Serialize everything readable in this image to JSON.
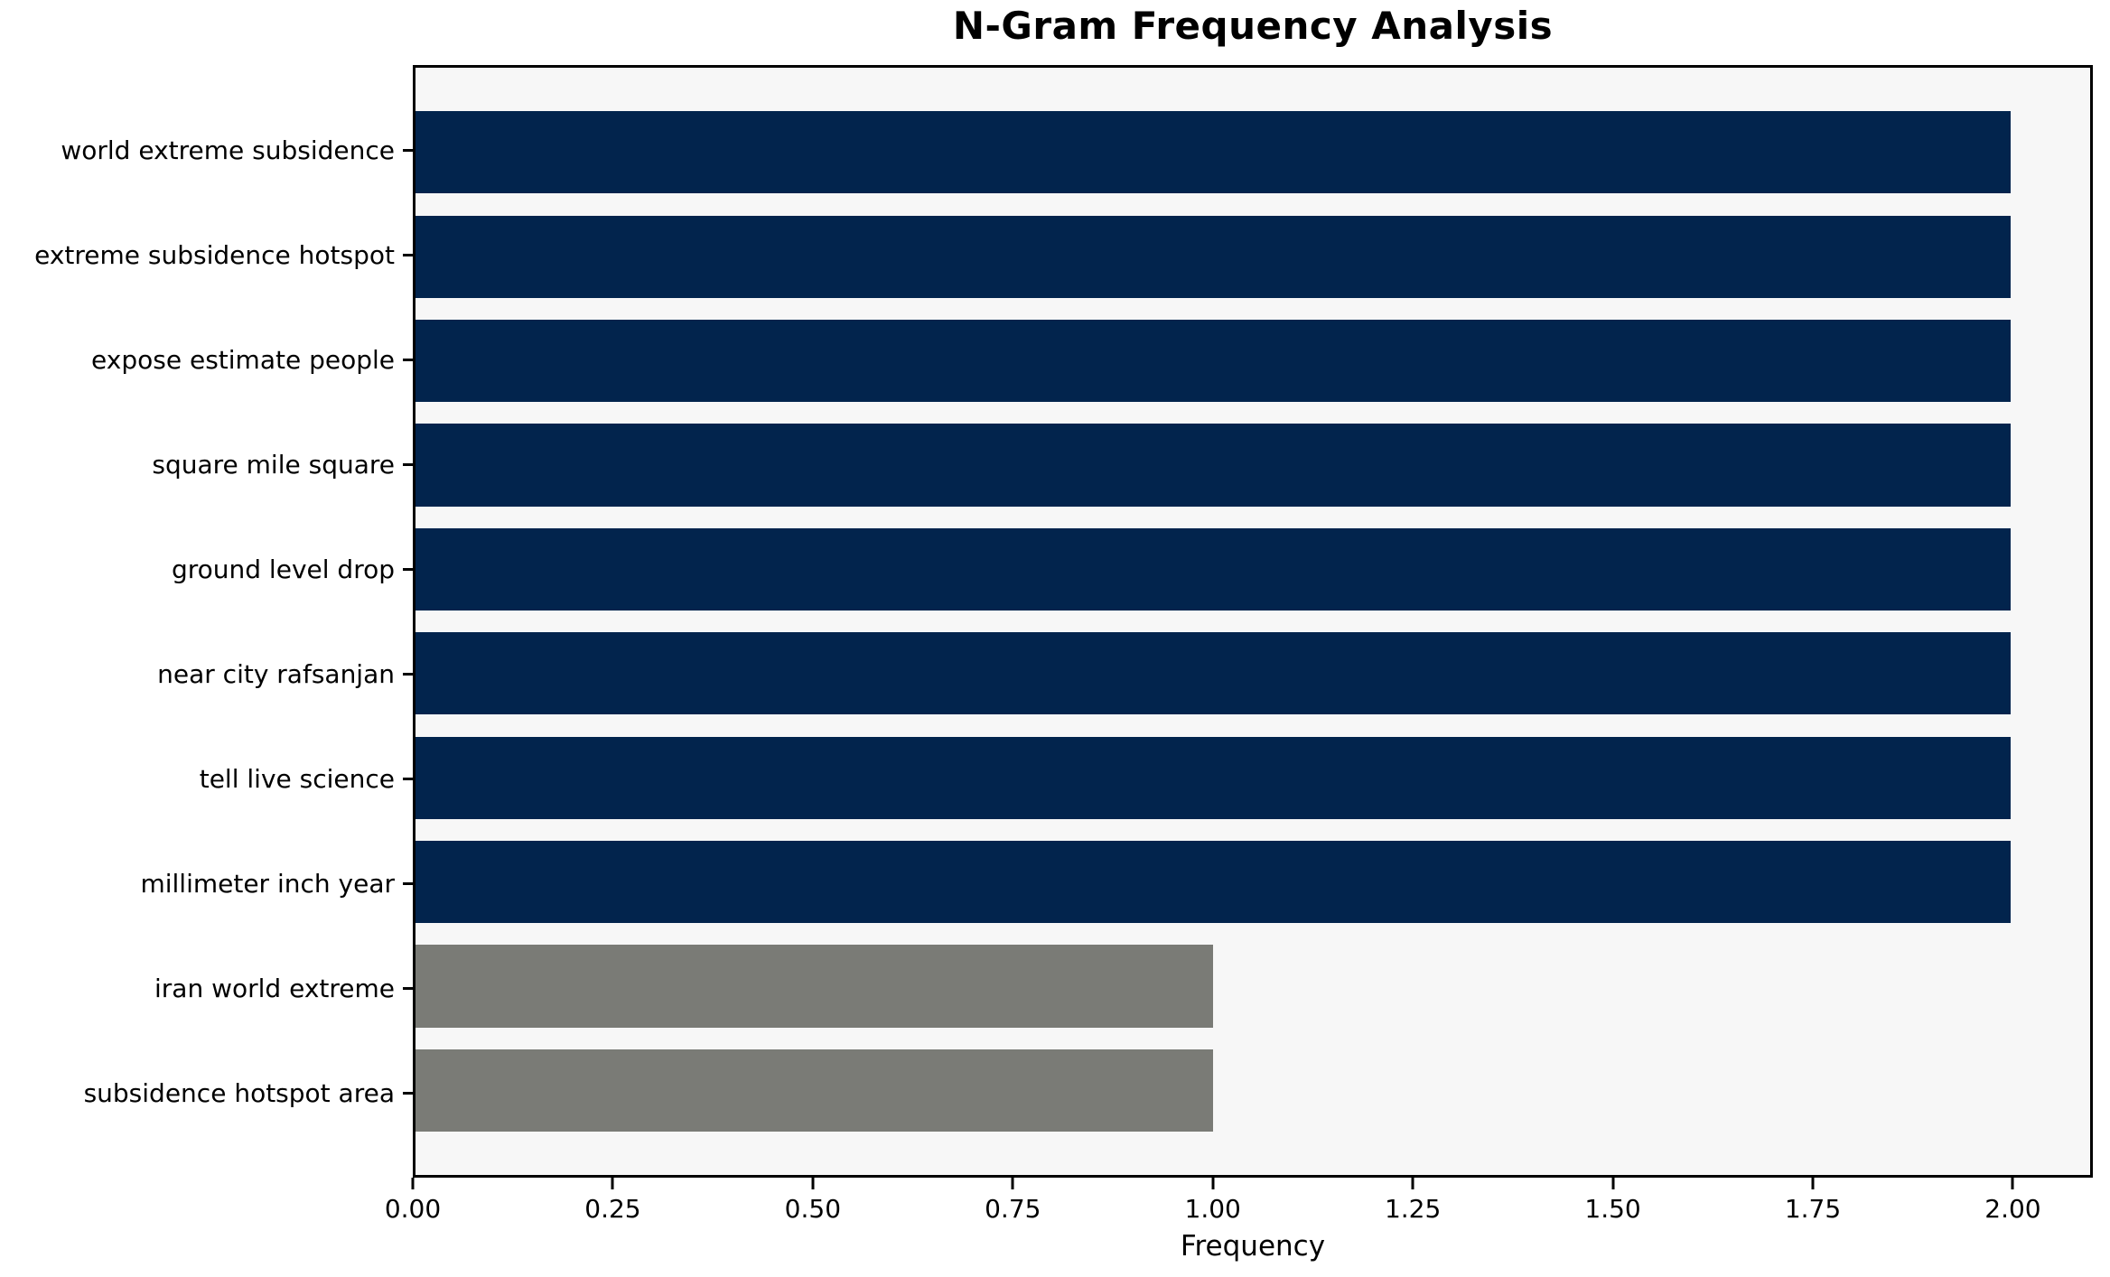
{
  "chart_data": {
    "type": "bar",
    "orientation": "horizontal",
    "title": "N-Gram Frequency Analysis",
    "xlabel": "Frequency",
    "ylabel": "",
    "categories": [
      "world extreme subsidence",
      "extreme subsidence hotspot",
      "expose estimate people",
      "square mile square",
      "ground level drop",
      "near city rafsanjan",
      "tell live science",
      "millimeter inch year",
      "iran world extreme",
      "subsidence hotspot area"
    ],
    "values": [
      2,
      2,
      2,
      2,
      2,
      2,
      2,
      2,
      1,
      1
    ],
    "bar_colors": [
      "#02244d",
      "#02244d",
      "#02244d",
      "#02244d",
      "#02244d",
      "#02244d",
      "#02244d",
      "#02244d",
      "#7a7b76",
      "#7a7b76"
    ],
    "xlim": [
      0,
      2.1
    ],
    "xtick_labels": [
      "0.00",
      "0.25",
      "0.50",
      "0.75",
      "1.00",
      "1.25",
      "1.50",
      "1.75",
      "2.00"
    ],
    "xtick_values": [
      0,
      0.25,
      0.5,
      0.75,
      1.0,
      1.25,
      1.5,
      1.75,
      2.0
    ],
    "grid": false,
    "legend": null,
    "colors": {
      "plot_background": "#f7f7f7",
      "figure_background": "#ffffff",
      "spine": "#000000",
      "high_frequency_bar": "#02244d",
      "low_frequency_bar": "#7a7b76"
    }
  }
}
